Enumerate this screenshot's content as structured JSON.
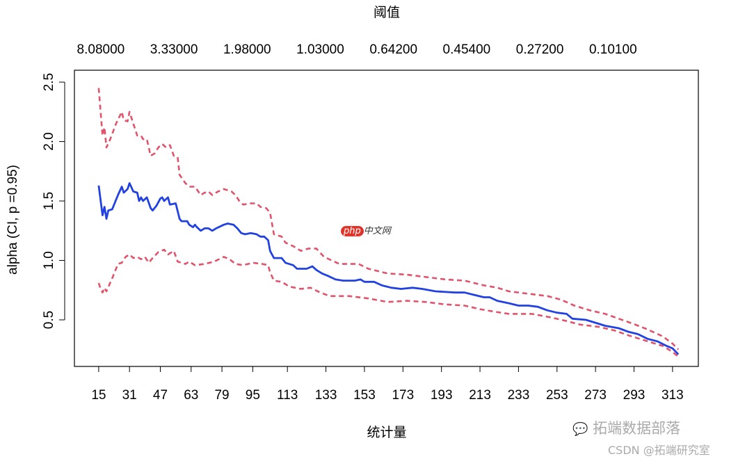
{
  "chart_data": {
    "type": "line",
    "top_axis_title": "阈值",
    "top_tick_labels": [
      "8.08000",
      "3.33000",
      "1.98000",
      "1.03000",
      "0.64200",
      "0.45400",
      "0.27200",
      "0.10100"
    ],
    "top_tick_positions": [
      15,
      53,
      91,
      129,
      167,
      205,
      243,
      281
    ],
    "xlabel": "统计量",
    "ylabel": "alpha (CI, p =0.95)",
    "xticks": [
      15,
      31,
      47,
      63,
      79,
      95,
      113,
      133,
      153,
      173,
      193,
      213,
      233,
      253,
      273,
      293,
      313
    ],
    "yticks": [
      0.5,
      1.0,
      1.5,
      2.0,
      2.5
    ],
    "ytick_labels": [
      "0.5",
      "1.0",
      "1.5",
      "2.0",
      "2.5"
    ],
    "xlim": [
      2.4,
      326.4
    ],
    "ylim": [
      0.108,
      2.6
    ],
    "grid": false,
    "colors": {
      "estimate": "#2142e0",
      "ci": "#df536b"
    },
    "series": [
      {
        "role": "estimate",
        "style": "solid",
        "points": [
          [
            15,
            1.63
          ],
          [
            17,
            1.38
          ],
          [
            18,
            1.45
          ],
          [
            19,
            1.35
          ],
          [
            20,
            1.42
          ],
          [
            22,
            1.43
          ],
          [
            25,
            1.55
          ],
          [
            27,
            1.62
          ],
          [
            28,
            1.57
          ],
          [
            30,
            1.6
          ],
          [
            31,
            1.65
          ],
          [
            33,
            1.58
          ],
          [
            35,
            1.57
          ],
          [
            36,
            1.5
          ],
          [
            37,
            1.53
          ],
          [
            38,
            1.5
          ],
          [
            40,
            1.53
          ],
          [
            42,
            1.44
          ],
          [
            43,
            1.42
          ],
          [
            45,
            1.46
          ],
          [
            47,
            1.52
          ],
          [
            48,
            1.53
          ],
          [
            49,
            1.5
          ],
          [
            51,
            1.53
          ],
          [
            52,
            1.47
          ],
          [
            55,
            1.48
          ],
          [
            57,
            1.35
          ],
          [
            58,
            1.33
          ],
          [
            61,
            1.33
          ],
          [
            62,
            1.3
          ],
          [
            64,
            1.28
          ],
          [
            65,
            1.3
          ],
          [
            66,
            1.28
          ],
          [
            68,
            1.25
          ],
          [
            70,
            1.27
          ],
          [
            72,
            1.27
          ],
          [
            74,
            1.25
          ],
          [
            76,
            1.27
          ],
          [
            80,
            1.3
          ],
          [
            82,
            1.31
          ],
          [
            85,
            1.3
          ],
          [
            87,
            1.27
          ],
          [
            89,
            1.23
          ],
          [
            91,
            1.22
          ],
          [
            94,
            1.23
          ],
          [
            97,
            1.22
          ],
          [
            99,
            1.2
          ],
          [
            101,
            1.2
          ],
          [
            103,
            1.17
          ],
          [
            104,
            1.08
          ],
          [
            106,
            1.02
          ],
          [
            110,
            1.02
          ],
          [
            112,
            0.98
          ],
          [
            116,
            0.96
          ],
          [
            118,
            0.93
          ],
          [
            123,
            0.93
          ],
          [
            126,
            0.95
          ],
          [
            128,
            0.92
          ],
          [
            131,
            0.89
          ],
          [
            134,
            0.87
          ],
          [
            138,
            0.84
          ],
          [
            142,
            0.83
          ],
          [
            148,
            0.83
          ],
          [
            151,
            0.84
          ],
          [
            153,
            0.82
          ],
          [
            158,
            0.82
          ],
          [
            162,
            0.79
          ],
          [
            167,
            0.77
          ],
          [
            172,
            0.76
          ],
          [
            178,
            0.77
          ],
          [
            183,
            0.76
          ],
          [
            190,
            0.74
          ],
          [
            200,
            0.73
          ],
          [
            205,
            0.73
          ],
          [
            210,
            0.71
          ],
          [
            215,
            0.69
          ],
          [
            218,
            0.69
          ],
          [
            222,
            0.66
          ],
          [
            228,
            0.64
          ],
          [
            233,
            0.62
          ],
          [
            238,
            0.62
          ],
          [
            243,
            0.61
          ],
          [
            248,
            0.58
          ],
          [
            253,
            0.56
          ],
          [
            258,
            0.55
          ],
          [
            261,
            0.51
          ],
          [
            268,
            0.5
          ],
          [
            272,
            0.48
          ],
          [
            278,
            0.45
          ],
          [
            285,
            0.43
          ],
          [
            290,
            0.4
          ],
          [
            295,
            0.38
          ],
          [
            300,
            0.34
          ],
          [
            305,
            0.32
          ],
          [
            310,
            0.28
          ],
          [
            313,
            0.26
          ],
          [
            316,
            0.21
          ]
        ]
      },
      {
        "role": "upper-ci",
        "style": "dashed",
        "points": [
          [
            15,
            2.45
          ],
          [
            17,
            2.05
          ],
          [
            18,
            2.12
          ],
          [
            19,
            1.95
          ],
          [
            21,
            2.02
          ],
          [
            24,
            2.15
          ],
          [
            27,
            2.25
          ],
          [
            28,
            2.18
          ],
          [
            30,
            2.17
          ],
          [
            31,
            2.25
          ],
          [
            33,
            2.15
          ],
          [
            35,
            2.05
          ],
          [
            37,
            2.05
          ],
          [
            38,
            2.02
          ],
          [
            40,
            2.02
          ],
          [
            42,
            1.88
          ],
          [
            44,
            1.9
          ],
          [
            46,
            1.95
          ],
          [
            48,
            1.98
          ],
          [
            50,
            1.95
          ],
          [
            52,
            1.97
          ],
          [
            54,
            1.88
          ],
          [
            56,
            1.87
          ],
          [
            57,
            1.72
          ],
          [
            60,
            1.65
          ],
          [
            62,
            1.62
          ],
          [
            65,
            1.62
          ],
          [
            68,
            1.55
          ],
          [
            70,
            1.57
          ],
          [
            72,
            1.58
          ],
          [
            74,
            1.55
          ],
          [
            77,
            1.58
          ],
          [
            80,
            1.6
          ],
          [
            84,
            1.58
          ],
          [
            86,
            1.55
          ],
          [
            88,
            1.5
          ],
          [
            90,
            1.47
          ],
          [
            94,
            1.48
          ],
          [
            97,
            1.48
          ],
          [
            99,
            1.45
          ],
          [
            102,
            1.44
          ],
          [
            104,
            1.4
          ],
          [
            106,
            1.22
          ],
          [
            110,
            1.2
          ],
          [
            112,
            1.15
          ],
          [
            116,
            1.12
          ],
          [
            120,
            1.08
          ],
          [
            124,
            1.1
          ],
          [
            128,
            1.1
          ],
          [
            132,
            1.03
          ],
          [
            136,
            1.0
          ],
          [
            140,
            0.97
          ],
          [
            150,
            0.97
          ],
          [
            155,
            0.93
          ],
          [
            165,
            0.89
          ],
          [
            175,
            0.88
          ],
          [
            185,
            0.86
          ],
          [
            195,
            0.84
          ],
          [
            205,
            0.83
          ],
          [
            215,
            0.79
          ],
          [
            222,
            0.77
          ],
          [
            228,
            0.74
          ],
          [
            238,
            0.72
          ],
          [
            248,
            0.7
          ],
          [
            255,
            0.67
          ],
          [
            262,
            0.62
          ],
          [
            270,
            0.58
          ],
          [
            278,
            0.55
          ],
          [
            285,
            0.51
          ],
          [
            292,
            0.47
          ],
          [
            300,
            0.42
          ],
          [
            308,
            0.36
          ],
          [
            313,
            0.3
          ],
          [
            316,
            0.25
          ]
        ]
      },
      {
        "role": "lower-ci",
        "style": "dashed",
        "points": [
          [
            15,
            0.81
          ],
          [
            16,
            0.76
          ],
          [
            17,
            0.73
          ],
          [
            18,
            0.77
          ],
          [
            19,
            0.74
          ],
          [
            22,
            0.85
          ],
          [
            25,
            0.97
          ],
          [
            27,
            0.98
          ],
          [
            29,
            1.03
          ],
          [
            31,
            1.05
          ],
          [
            33,
            1.02
          ],
          [
            35,
            1.03
          ],
          [
            37,
            1.01
          ],
          [
            39,
            1.03
          ],
          [
            41,
            0.98
          ],
          [
            43,
            1.02
          ],
          [
            46,
            1.07
          ],
          [
            49,
            1.09
          ],
          [
            51,
            1.05
          ],
          [
            54,
            1.08
          ],
          [
            56,
            0.99
          ],
          [
            60,
            0.97
          ],
          [
            62,
            0.99
          ],
          [
            65,
            0.96
          ],
          [
            70,
            0.97
          ],
          [
            75,
            0.99
          ],
          [
            80,
            1.03
          ],
          [
            83,
            1.01
          ],
          [
            86,
            0.97
          ],
          [
            90,
            0.96
          ],
          [
            95,
            0.98
          ],
          [
            100,
            0.97
          ],
          [
            103,
            0.96
          ],
          [
            104,
            0.9
          ],
          [
            106,
            0.83
          ],
          [
            110,
            0.82
          ],
          [
            114,
            0.78
          ],
          [
            120,
            0.76
          ],
          [
            125,
            0.77
          ],
          [
            130,
            0.73
          ],
          [
            135,
            0.7
          ],
          [
            145,
            0.7
          ],
          [
            155,
            0.68
          ],
          [
            165,
            0.65
          ],
          [
            175,
            0.66
          ],
          [
            185,
            0.65
          ],
          [
            195,
            0.63
          ],
          [
            205,
            0.62
          ],
          [
            213,
            0.59
          ],
          [
            220,
            0.57
          ],
          [
            228,
            0.55
          ],
          [
            240,
            0.55
          ],
          [
            250,
            0.52
          ],
          [
            258,
            0.49
          ],
          [
            265,
            0.46
          ],
          [
            275,
            0.44
          ],
          [
            283,
            0.41
          ],
          [
            290,
            0.37
          ],
          [
            300,
            0.32
          ],
          [
            308,
            0.28
          ],
          [
            313,
            0.23
          ],
          [
            316,
            0.19
          ]
        ]
      }
    ]
  },
  "watermarks": {
    "center_logo": "php中文网",
    "brand": "拓端数据部落",
    "credit": "CSDN @拓端研究室"
  }
}
